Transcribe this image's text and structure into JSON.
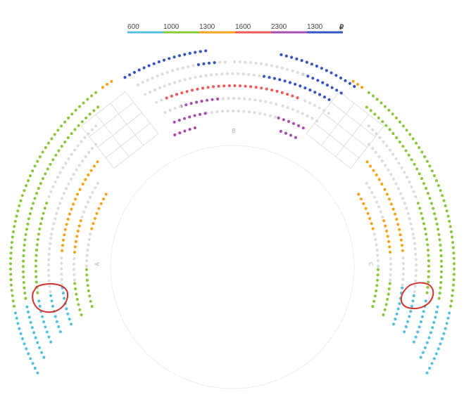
{
  "legend": {
    "items": [
      {
        "label": "600",
        "color": "#56c1dd"
      },
      {
        "label": "1000",
        "color": "#8dc63f"
      },
      {
        "label": "1300",
        "color": "#f5a31a"
      },
      {
        "label": "1600",
        "color": "#ee5a5a"
      },
      {
        "label": "2300",
        "color": "#a64dae"
      },
      {
        "label": "1300",
        "color": "#3556c0"
      }
    ],
    "currency": "₽"
  },
  "sections": [
    {
      "label": "B"
    },
    {
      "label": "A"
    },
    {
      "label": "C"
    }
  ]
}
